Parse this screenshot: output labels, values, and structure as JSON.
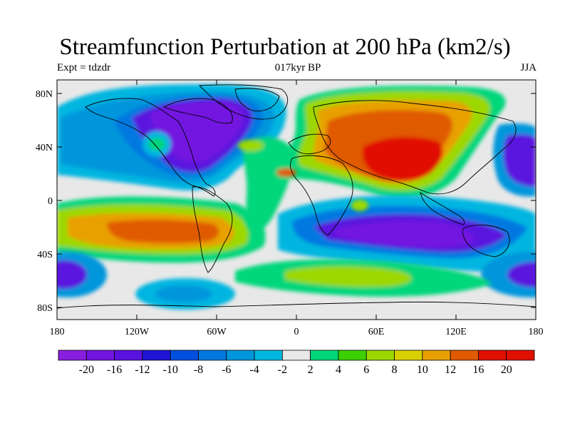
{
  "title": "Streamfunction Perturbation at 200 hPa (km2/s)",
  "subtitle_left": "Expt = tdzdr",
  "subtitle_center": "017kyr BP",
  "subtitle_right": "JJA",
  "lat_ticks": [
    "80N",
    "40N",
    "0",
    "40S",
    "80S"
  ],
  "lon_ticks": [
    "180",
    "120W",
    "60W",
    "0",
    "60E",
    "120E",
    "180"
  ],
  "colorbar": {
    "labels": [
      "-20",
      "-16",
      "-12",
      "-10",
      "-8",
      "-6",
      "-4",
      "-2",
      "2",
      "4",
      "6",
      "8",
      "10",
      "12",
      "16",
      "20"
    ],
    "colors": [
      "#8a1ee0",
      "#7314e0",
      "#5a12de",
      "#1e14d6",
      "#0050e0",
      "#0078e0",
      "#0096dc",
      "#00b6e0",
      "#e8e8e8",
      "#00d67a",
      "#3cd000",
      "#9cd800",
      "#d8d000",
      "#e8a000",
      "#e05a00",
      "#e01000"
    ]
  },
  "colors": {
    "background": "#e8e8e8",
    "coastline": "#000000"
  }
}
